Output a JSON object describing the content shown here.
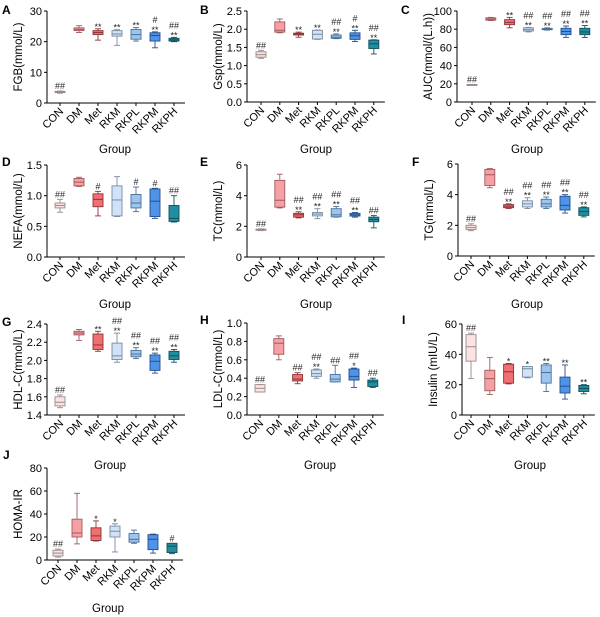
{
  "figure": {
    "x_title": "Group",
    "groups": [
      "CON",
      "DM",
      "Met",
      "RKM",
      "RKPL",
      "RKPM",
      "RKPH"
    ],
    "group_colors": {
      "CON": {
        "fill": "#fbe3e3",
        "stroke": "#9a8a8a"
      },
      "DM": {
        "fill": "#f4a0a4",
        "stroke": "#a05a5e"
      },
      "Met": {
        "fill": "#ef6f73",
        "stroke": "#8e3438"
      },
      "RKM": {
        "fill": "#cfe2f7",
        "stroke": "#7a8aa0"
      },
      "RKPL": {
        "fill": "#9cc6f1",
        "stroke": "#4b6f95"
      },
      "RKPM": {
        "fill": "#4f93e8",
        "stroke": "#244f8a"
      },
      "RKPH": {
        "fill": "#1f8ea0",
        "stroke": "#13505a"
      }
    }
  },
  "chart_data": [
    {
      "panel": "A",
      "type": "box",
      "ylabel": "FGB(mmol/L)",
      "xlabel": "Group",
      "ylim": [
        0,
        30
      ],
      "yticks": [
        "0",
        "10",
        "20",
        "30"
      ],
      "ytick_values": [
        0,
        10,
        20,
        30
      ],
      "categories": [
        "CON",
        "DM",
        "Met",
        "RKM",
        "RKPL",
        "RKPM",
        "RKPH"
      ],
      "boxes": [
        {
          "min": 3.2,
          "q1": 3.4,
          "median": 3.6,
          "q3": 3.8,
          "max": 3.9
        },
        {
          "min": 23.0,
          "q1": 23.6,
          "median": 24.0,
          "q3": 24.5,
          "max": 25.2
        },
        {
          "min": 20.5,
          "q1": 22.3,
          "median": 23.0,
          "q3": 23.6,
          "max": 24.2
        },
        {
          "min": 18.8,
          "q1": 21.8,
          "median": 22.5,
          "q3": 23.6,
          "max": 23.9
        },
        {
          "min": 20.2,
          "q1": 20.8,
          "median": 22.3,
          "q3": 24.0,
          "max": 24.6
        },
        {
          "min": 18.0,
          "q1": 20.2,
          "median": 22.0,
          "q3": 22.9,
          "max": 23.2
        },
        {
          "min": 20.0,
          "q1": 20.2,
          "median": 20.6,
          "q3": 21.1,
          "max": 21.4
        }
      ],
      "annotations": [
        [
          "##"
        ],
        [],
        [
          "**"
        ],
        [
          "**"
        ],
        [
          "**"
        ],
        [
          "#",
          "**"
        ],
        [
          "##",
          "**"
        ]
      ]
    },
    {
      "panel": "B",
      "type": "box",
      "ylabel": "Gsp(mmol/L)",
      "xlabel": "Group",
      "ylim": [
        0,
        2.5
      ],
      "yticks": [
        "0.0",
        "0.5",
        "1.0",
        "1.5",
        "2.0",
        "2.5"
      ],
      "ytick_values": [
        0,
        0.5,
        1.0,
        1.5,
        2.0,
        2.5
      ],
      "categories": [
        "CON",
        "DM",
        "Met",
        "RKM",
        "RKPL",
        "RKPM",
        "RKPH"
      ],
      "boxes": [
        {
          "min": 1.2,
          "q1": 1.23,
          "median": 1.3,
          "q3": 1.38,
          "max": 1.42
        },
        {
          "min": 1.9,
          "q1": 1.92,
          "median": 1.97,
          "q3": 2.2,
          "max": 2.28
        },
        {
          "min": 1.78,
          "q1": 1.84,
          "median": 1.87,
          "q3": 1.89,
          "max": 1.92
        },
        {
          "min": 1.72,
          "q1": 1.73,
          "median": 1.86,
          "q3": 1.97,
          "max": 1.98
        },
        {
          "min": 1.74,
          "q1": 1.75,
          "median": 1.78,
          "q3": 1.84,
          "max": 1.87
        },
        {
          "min": 1.66,
          "q1": 1.72,
          "median": 1.82,
          "q3": 1.9,
          "max": 1.97
        },
        {
          "min": 1.32,
          "q1": 1.47,
          "median": 1.6,
          "q3": 1.7,
          "max": 1.71
        }
      ],
      "annotations": [
        [
          "##"
        ],
        [],
        [
          "**"
        ],
        [
          "**"
        ],
        [
          "##",
          "**"
        ],
        [
          "#",
          "**"
        ],
        [
          "##",
          "**"
        ]
      ]
    },
    {
      "panel": "C",
      "type": "box",
      "ylabel": "AUC(mmol/(L.h))",
      "xlabel": "Group",
      "ylim": [
        0,
        100
      ],
      "yticks": [
        "0",
        "20",
        "40",
        "60",
        "80",
        "100"
      ],
      "ytick_values": [
        0,
        20,
        40,
        60,
        80,
        100
      ],
      "categories": [
        "CON",
        "DM",
        "Met",
        "RKM",
        "RKPL",
        "RKPM",
        "RKPH"
      ],
      "boxes": [
        {
          "min": 18.7,
          "q1": 18.9,
          "median": 19.0,
          "q3": 19.2,
          "max": 19.3
        },
        {
          "min": 89.5,
          "q1": 90.0,
          "median": 91.0,
          "q3": 92.5,
          "max": 93.0
        },
        {
          "min": 81.5,
          "q1": 85.0,
          "median": 87.5,
          "q3": 90.5,
          "max": 93.0
        },
        {
          "min": 77.0,
          "q1": 78.0,
          "median": 79.5,
          "q3": 81.5,
          "max": 82.0
        },
        {
          "min": 79.0,
          "q1": 79.5,
          "median": 80.2,
          "q3": 80.8,
          "max": 81.5
        },
        {
          "min": 71.0,
          "q1": 74.0,
          "median": 77.5,
          "q3": 81.0,
          "max": 83.5
        },
        {
          "min": 71.0,
          "q1": 74.0,
          "median": 77.0,
          "q3": 81.0,
          "max": 84.0
        }
      ],
      "annotations": [
        [
          "##"
        ],
        [],
        [
          "**"
        ],
        [
          "##",
          "**"
        ],
        [
          "##",
          "**"
        ],
        [
          "##",
          "**"
        ],
        [
          "##",
          "**"
        ]
      ]
    },
    {
      "panel": "D",
      "type": "box",
      "ylabel": "NEFA(mmol/L)",
      "xlabel": "Group",
      "ylim": [
        0,
        1.5
      ],
      "yticks": [
        "0.0",
        "0.5",
        "1.0",
        "1.5"
      ],
      "ytick_values": [
        0,
        0.5,
        1.0,
        1.5
      ],
      "categories": [
        "CON",
        "DM",
        "Met",
        "RKM",
        "RKPL",
        "RKPM",
        "RKPH"
      ],
      "boxes": [
        {
          "min": 0.73,
          "q1": 0.8,
          "median": 0.84,
          "q3": 0.88,
          "max": 0.94
        },
        {
          "min": 1.15,
          "q1": 1.16,
          "median": 1.22,
          "q3": 1.28,
          "max": 1.3
        },
        {
          "min": 0.67,
          "q1": 0.82,
          "median": 0.94,
          "q3": 1.03,
          "max": 1.07
        },
        {
          "min": 0.66,
          "q1": 0.67,
          "median": 0.93,
          "q3": 1.16,
          "max": 1.31
        },
        {
          "min": 0.74,
          "q1": 0.8,
          "median": 0.88,
          "q3": 1.02,
          "max": 1.14
        },
        {
          "min": 0.63,
          "q1": 0.66,
          "median": 0.91,
          "q3": 1.11,
          "max": 1.12
        },
        {
          "min": 0.57,
          "q1": 0.58,
          "median": 0.63,
          "q3": 0.84,
          "max": 1.0
        }
      ],
      "annotations": [
        [
          "##"
        ],
        [],
        [
          "#"
        ],
        [],
        [
          "#"
        ],
        [
          "#"
        ],
        [
          "##"
        ]
      ]
    },
    {
      "panel": "E",
      "type": "box",
      "ylabel": "TC(mmol/L)",
      "xlabel": "Group",
      "ylim": [
        0,
        6
      ],
      "yticks": [
        "0",
        "2",
        "4",
        "6"
      ],
      "ytick_values": [
        0,
        2,
        4,
        6
      ],
      "categories": [
        "CON",
        "DM",
        "Met",
        "RKM",
        "RKPL",
        "RKPM",
        "RKPH"
      ],
      "boxes": [
        {
          "min": 1.72,
          "q1": 1.74,
          "median": 1.78,
          "q3": 1.82,
          "max": 1.84
        },
        {
          "min": 3.2,
          "q1": 3.25,
          "median": 3.7,
          "q3": 5.0,
          "max": 5.4
        },
        {
          "min": 2.55,
          "q1": 2.6,
          "median": 2.75,
          "q3": 2.85,
          "max": 2.95
        },
        {
          "min": 2.5,
          "q1": 2.68,
          "median": 2.8,
          "q3": 2.9,
          "max": 3.15
        },
        {
          "min": 2.6,
          "q1": 2.62,
          "median": 2.75,
          "q3": 3.15,
          "max": 3.3
        },
        {
          "min": 2.6,
          "q1": 2.67,
          "median": 2.75,
          "q3": 2.85,
          "max": 2.9
        },
        {
          "min": 1.9,
          "q1": 2.3,
          "median": 2.45,
          "q3": 2.6,
          "max": 2.7
        }
      ],
      "annotations": [
        [
          "##"
        ],
        [],
        [
          "##",
          "**"
        ],
        [
          "##",
          "**"
        ],
        [
          "##",
          "**"
        ],
        [
          "##",
          "**"
        ],
        [
          "##"
        ]
      ]
    },
    {
      "panel": "F",
      "type": "box",
      "ylabel": "TG(mmol/L)",
      "xlabel": "Group",
      "ylim": [
        0,
        6
      ],
      "yticks": [
        "0",
        "2",
        "4",
        "6"
      ],
      "ytick_values": [
        0,
        2,
        4,
        6
      ],
      "categories": [
        "CON",
        "DM",
        "Met",
        "RKM",
        "RKPL",
        "RKPM",
        "RKPH"
      ],
      "boxes": [
        {
          "min": 1.65,
          "q1": 1.72,
          "median": 1.85,
          "q3": 2.0,
          "max": 2.1
        },
        {
          "min": 4.45,
          "q1": 4.6,
          "median": 5.3,
          "q3": 5.65,
          "max": 5.7
        },
        {
          "min": 3.1,
          "q1": 3.15,
          "median": 3.25,
          "q3": 3.35,
          "max": 3.4
        },
        {
          "min": 3.1,
          "q1": 3.2,
          "median": 3.4,
          "q3": 3.6,
          "max": 3.8
        },
        {
          "min": 3.1,
          "q1": 3.2,
          "median": 3.4,
          "q3": 3.7,
          "max": 3.85
        },
        {
          "min": 2.8,
          "q1": 3.0,
          "median": 3.3,
          "q3": 3.9,
          "max": 4.0
        },
        {
          "min": 2.55,
          "q1": 2.65,
          "median": 2.9,
          "q3": 3.15,
          "max": 3.2
        }
      ],
      "annotations": [
        [
          "##"
        ],
        [],
        [
          "##",
          "**"
        ],
        [
          "##",
          "**"
        ],
        [
          "##",
          "**"
        ],
        [
          "##",
          "**"
        ],
        [
          "##",
          "**"
        ]
      ]
    },
    {
      "panel": "G",
      "type": "box",
      "ylabel": "HDL-C(mmol/L)",
      "xlabel": "",
      "ylim": [
        1.4,
        2.4
      ],
      "yticks": [
        "1.4",
        "1.6",
        "1.8",
        "2.0",
        "2.2",
        "2.4"
      ],
      "ytick_values": [
        1.4,
        1.6,
        1.8,
        2.0,
        2.2,
        2.4
      ],
      "categories": [
        "CON",
        "DM",
        "Met",
        "RKM",
        "RKPL",
        "RKPM",
        "RKPH"
      ],
      "boxes": [
        {
          "min": 1.48,
          "q1": 1.5,
          "median": 1.54,
          "q3": 1.6,
          "max": 1.62
        },
        {
          "min": 2.22,
          "q1": 2.28,
          "median": 2.3,
          "q3": 2.32,
          "max": 2.34
        },
        {
          "min": 2.1,
          "q1": 2.12,
          "median": 2.17,
          "q3": 2.29,
          "max": 2.32
        },
        {
          "min": 1.98,
          "q1": 2.01,
          "median": 2.05,
          "q3": 2.19,
          "max": 2.3
        },
        {
          "min": 2.02,
          "q1": 2.04,
          "median": 2.07,
          "q3": 2.11,
          "max": 2.14
        },
        {
          "min": 1.86,
          "q1": 1.89,
          "median": 1.99,
          "q3": 2.06,
          "max": 2.08
        },
        {
          "min": 1.98,
          "q1": 2.01,
          "median": 2.05,
          "q3": 2.1,
          "max": 2.12
        }
      ],
      "annotations": [
        [
          "##"
        ],
        [],
        [
          "**"
        ],
        [
          "##",
          "**"
        ],
        [
          "##",
          "**"
        ],
        [
          "##",
          "**"
        ],
        [
          "##",
          "**"
        ]
      ]
    },
    {
      "panel": "H",
      "type": "box",
      "ylabel": "LDL-C(mmol/L)",
      "xlabel": "",
      "ylim": [
        0,
        1.0
      ],
      "yticks": [
        "0.0",
        "0.2",
        "0.4",
        "0.6",
        "0.8",
        "1.0"
      ],
      "ytick_values": [
        0,
        0.2,
        0.4,
        0.6,
        0.8,
        1.0
      ],
      "categories": [
        "CON",
        "DM",
        "Met",
        "RKM",
        "RKPL",
        "RKPM",
        "RKPH"
      ],
      "boxes": [
        {
          "min": 0.25,
          "q1": 0.25,
          "median": 0.29,
          "q3": 0.33,
          "max": 0.33
        },
        {
          "min": 0.6,
          "q1": 0.66,
          "median": 0.78,
          "q3": 0.83,
          "max": 0.86
        },
        {
          "min": 0.34,
          "q1": 0.37,
          "median": 0.39,
          "q3": 0.44,
          "max": 0.46
        },
        {
          "min": 0.4,
          "q1": 0.42,
          "median": 0.45,
          "q3": 0.49,
          "max": 0.5
        },
        {
          "min": 0.36,
          "q1": 0.36,
          "median": 0.39,
          "q3": 0.44,
          "max": 0.54
        },
        {
          "min": 0.3,
          "q1": 0.38,
          "median": 0.42,
          "q3": 0.5,
          "max": 0.51
        },
        {
          "min": 0.3,
          "q1": 0.31,
          "median": 0.36,
          "q3": 0.38,
          "max": 0.4
        }
      ],
      "annotations": [
        [
          "##"
        ],
        [],
        [
          "##"
        ],
        [
          "##",
          "**"
        ],
        [
          "##"
        ],
        [
          "##",
          "*"
        ],
        [
          "##"
        ]
      ]
    },
    {
      "panel": "I",
      "type": "box",
      "ylabel": "Insulin (mIU/L)",
      "xlabel": "",
      "ylim": [
        0,
        60
      ],
      "yticks": [
        "0",
        "20",
        "40",
        "60"
      ],
      "ytick_values": [
        0,
        20,
        40,
        60
      ],
      "categories": [
        "CON",
        "DM",
        "Met",
        "RKM",
        "RKPL",
        "RKPM",
        "RKPH"
      ],
      "boxes": [
        {
          "min": 24,
          "q1": 35.5,
          "median": 45,
          "q3": 53,
          "max": 54
        },
        {
          "min": 13.5,
          "q1": 16,
          "median": 24,
          "q3": 29.5,
          "max": 38
        },
        {
          "min": 20.5,
          "q1": 21,
          "median": 28.5,
          "q3": 33.5,
          "max": 34
        },
        {
          "min": 24.5,
          "q1": 25,
          "median": 30.5,
          "q3": 32,
          "max": 32
        },
        {
          "min": 15.5,
          "q1": 21,
          "median": 28,
          "q3": 33,
          "max": 34
        },
        {
          "min": 10.5,
          "q1": 14.5,
          "median": 19,
          "q3": 25,
          "max": 33
        },
        {
          "min": 14,
          "q1": 15.5,
          "median": 17.5,
          "q3": 19.5,
          "max": 20
        }
      ],
      "annotations": [
        [
          "##"
        ],
        [],
        [
          "*"
        ],
        [
          "*"
        ],
        [
          "**"
        ],
        [
          "**"
        ],
        [
          "**"
        ]
      ]
    },
    {
      "panel": "J",
      "type": "box",
      "ylabel": "HOMA-IR",
      "xlabel": "Group",
      "ylim": [
        0,
        80
      ],
      "yticks": [
        "0",
        "20",
        "40",
        "60",
        "80"
      ],
      "ytick_values": [
        0,
        20,
        40,
        60,
        80
      ],
      "categories": [
        "CON",
        "DM",
        "Met",
        "RKM",
        "RKPL",
        "RKPM",
        "RKPH"
      ],
      "boxes": [
        {
          "min": 2.5,
          "q1": 3.5,
          "median": 6,
          "q3": 8.5,
          "max": 9.5
        },
        {
          "min": 14,
          "q1": 20,
          "median": 23.5,
          "q3": 35.5,
          "max": 58
        },
        {
          "min": 16.5,
          "q1": 17,
          "median": 21,
          "q3": 28,
          "max": 34
        },
        {
          "min": 7,
          "q1": 20,
          "median": 25,
          "q3": 29.5,
          "max": 31.5
        },
        {
          "min": 14.5,
          "q1": 15.5,
          "median": 18,
          "q3": 23,
          "max": 26
        },
        {
          "min": 6,
          "q1": 9,
          "median": 18,
          "q3": 22,
          "max": 22.5
        },
        {
          "min": 5.5,
          "q1": 6.5,
          "median": 12,
          "q3": 14.5,
          "max": 14.5
        }
      ],
      "annotations": [
        [
          "##"
        ],
        [],
        [
          "*"
        ],
        [
          "*"
        ],
        [],
        [],
        [
          "#"
        ]
      ]
    }
  ]
}
